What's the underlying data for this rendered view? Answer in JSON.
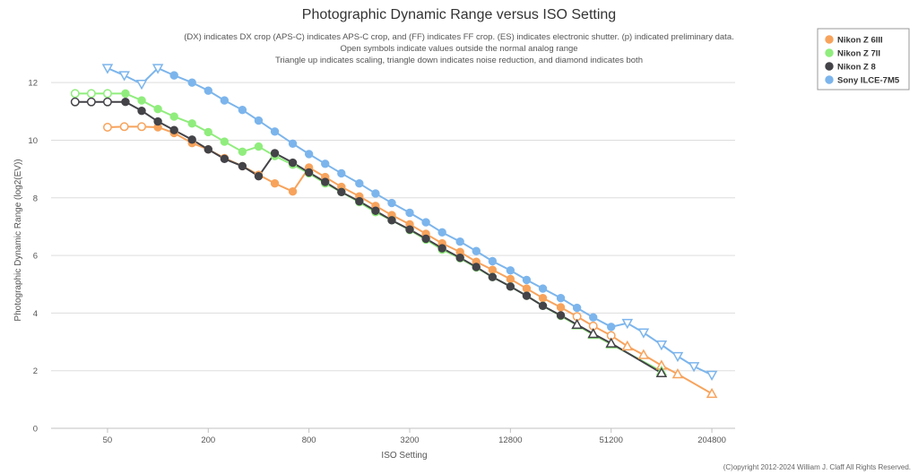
{
  "chart_data": {
    "type": "line",
    "title": "Photographic Dynamic Range versus ISO Setting",
    "subtitle": [
      "(DX) indicates DX crop (APS-C) indicates APS-C crop, and (FF) indicates FF crop. (ES) indicates electronic shutter. (p) indicated preliminary data.",
      "Open symbols indicate values outside the normal analog range",
      "Triangle up indicates scaling, triangle down indicates noise reduction, and diamond indicates both"
    ],
    "xlabel": "ISO Setting",
    "ylabel": "Photographic Dynamic Range (log2(EV))",
    "x_scale": "log2",
    "xlim": [
      23,
      282000
    ],
    "ylim": [
      0,
      13
    ],
    "x_ticks": [
      "50",
      "200",
      "800",
      "3200",
      "12800",
      "51200",
      "204800"
    ],
    "y_ticks": [
      "0",
      "2",
      "4",
      "6",
      "8",
      "10",
      "12"
    ],
    "legend": [
      "Nikon Z 6III",
      "Nikon Z 7II",
      "Nikon Z 8",
      "Sony ILCE-7M5"
    ],
    "legend_position": "top-right",
    "credit": "(C)opyright 2012-2024 William J. Claff All Rights Reserved.",
    "series": [
      {
        "name": "Nikon Z 6III",
        "color": "#F7A35C",
        "points": [
          {
            "iso": 50,
            "dr": 10.45,
            "m": "open"
          },
          {
            "iso": 63,
            "dr": 10.47,
            "m": "open"
          },
          {
            "iso": 80,
            "dr": 10.47,
            "m": "open"
          },
          {
            "iso": 100,
            "dr": 10.45,
            "m": "c"
          },
          {
            "iso": 125,
            "dr": 10.25,
            "m": "c"
          },
          {
            "iso": 160,
            "dr": 9.9,
            "m": "c"
          },
          {
            "iso": 200,
            "dr": 9.68,
            "m": "c"
          },
          {
            "iso": 250,
            "dr": 9.38,
            "m": "c"
          },
          {
            "iso": 320,
            "dr": 9.1,
            "m": "c"
          },
          {
            "iso": 400,
            "dr": 8.8,
            "m": "c"
          },
          {
            "iso": 500,
            "dr": 8.5,
            "m": "c"
          },
          {
            "iso": 640,
            "dr": 8.22,
            "m": "c"
          },
          {
            "iso": 800,
            "dr": 9.05,
            "m": "c"
          },
          {
            "iso": 1000,
            "dr": 8.72,
            "m": "c"
          },
          {
            "iso": 1250,
            "dr": 8.38,
            "m": "c"
          },
          {
            "iso": 1600,
            "dr": 8.05,
            "m": "c"
          },
          {
            "iso": 2000,
            "dr": 7.72,
            "m": "c"
          },
          {
            "iso": 2500,
            "dr": 7.4,
            "m": "c"
          },
          {
            "iso": 3200,
            "dr": 7.08,
            "m": "c"
          },
          {
            "iso": 4000,
            "dr": 6.75,
            "m": "c"
          },
          {
            "iso": 5000,
            "dr": 6.42,
            "m": "c"
          },
          {
            "iso": 6400,
            "dr": 6.12,
            "m": "c"
          },
          {
            "iso": 8000,
            "dr": 5.78,
            "m": "c"
          },
          {
            "iso": 10000,
            "dr": 5.5,
            "m": "c"
          },
          {
            "iso": 12800,
            "dr": 5.18,
            "m": "c"
          },
          {
            "iso": 16000,
            "dr": 4.85,
            "m": "c"
          },
          {
            "iso": 20000,
            "dr": 4.52,
            "m": "c"
          },
          {
            "iso": 25600,
            "dr": 4.2,
            "m": "c"
          },
          {
            "iso": 32000,
            "dr": 3.88,
            "m": "open"
          },
          {
            "iso": 40000,
            "dr": 3.55,
            "m": "open"
          },
          {
            "iso": 51200,
            "dr": 3.22,
            "m": "open"
          },
          {
            "iso": 64000,
            "dr": 2.85,
            "m": "tu"
          },
          {
            "iso": 80000,
            "dr": 2.55,
            "m": "tu"
          },
          {
            "iso": 102400,
            "dr": 2.18,
            "m": "tu"
          },
          {
            "iso": 128000,
            "dr": 1.88,
            "m": "tu"
          },
          {
            "iso": 204800,
            "dr": 1.2,
            "m": "tu"
          }
        ]
      },
      {
        "name": "Nikon Z 7II",
        "color": "#90ED7D",
        "points": [
          {
            "iso": 32,
            "dr": 11.62,
            "m": "open"
          },
          {
            "iso": 40,
            "dr": 11.62,
            "m": "open"
          },
          {
            "iso": 50,
            "dr": 11.62,
            "m": "open"
          },
          {
            "iso": 64,
            "dr": 11.62,
            "m": "c"
          },
          {
            "iso": 80,
            "dr": 11.38,
            "m": "c"
          },
          {
            "iso": 100,
            "dr": 11.08,
            "m": "c"
          },
          {
            "iso": 125,
            "dr": 10.82,
            "m": "c"
          },
          {
            "iso": 160,
            "dr": 10.58,
            "m": "c"
          },
          {
            "iso": 200,
            "dr": 10.28,
            "m": "c"
          },
          {
            "iso": 250,
            "dr": 9.95,
            "m": "c"
          },
          {
            "iso": 320,
            "dr": 9.6,
            "m": "c"
          },
          {
            "iso": 400,
            "dr": 9.78,
            "m": "c"
          },
          {
            "iso": 500,
            "dr": 9.45,
            "m": "c"
          },
          {
            "iso": 640,
            "dr": 9.15,
            "m": "c"
          },
          {
            "iso": 800,
            "dr": 8.85,
            "m": "c"
          },
          {
            "iso": 1000,
            "dr": 8.5,
            "m": "c"
          },
          {
            "iso": 1250,
            "dr": 8.2,
            "m": "c"
          },
          {
            "iso": 1600,
            "dr": 7.85,
            "m": "c"
          },
          {
            "iso": 2000,
            "dr": 7.5,
            "m": "c"
          },
          {
            "iso": 2500,
            "dr": 7.22,
            "m": "c"
          },
          {
            "iso": 3200,
            "dr": 6.88,
            "m": "c"
          },
          {
            "iso": 4000,
            "dr": 6.55,
            "m": "c"
          },
          {
            "iso": 5000,
            "dr": 6.2,
            "m": "c"
          },
          {
            "iso": 6400,
            "dr": 5.9,
            "m": "c"
          },
          {
            "iso": 8000,
            "dr": 5.58,
            "m": "c"
          },
          {
            "iso": 10000,
            "dr": 5.25,
            "m": "c"
          },
          {
            "iso": 12800,
            "dr": 4.92,
            "m": "c"
          },
          {
            "iso": 16000,
            "dr": 4.6,
            "m": "c"
          },
          {
            "iso": 20000,
            "dr": 4.25,
            "m": "c"
          },
          {
            "iso": 25600,
            "dr": 3.9,
            "m": "c"
          },
          {
            "iso": 32000,
            "dr": 3.58,
            "m": "tu"
          },
          {
            "iso": 40000,
            "dr": 3.25,
            "m": "tu"
          },
          {
            "iso": 51200,
            "dr": 2.92,
            "m": "tu"
          },
          {
            "iso": 102400,
            "dr": 1.98,
            "m": "tu"
          }
        ]
      },
      {
        "name": "Nikon Z 8",
        "color": "#434348",
        "points": [
          {
            "iso": 32,
            "dr": 11.33,
            "m": "open"
          },
          {
            "iso": 40,
            "dr": 11.33,
            "m": "open"
          },
          {
            "iso": 50,
            "dr": 11.33,
            "m": "open"
          },
          {
            "iso": 64,
            "dr": 11.33,
            "m": "c"
          },
          {
            "iso": 80,
            "dr": 11.02,
            "m": "c"
          },
          {
            "iso": 100,
            "dr": 10.65,
            "m": "c"
          },
          {
            "iso": 125,
            "dr": 10.35,
            "m": "c"
          },
          {
            "iso": 160,
            "dr": 10.02,
            "m": "c"
          },
          {
            "iso": 200,
            "dr": 9.68,
            "m": "c"
          },
          {
            "iso": 250,
            "dr": 9.35,
            "m": "c"
          },
          {
            "iso": 320,
            "dr": 9.1,
            "m": "c"
          },
          {
            "iso": 400,
            "dr": 8.75,
            "m": "c"
          },
          {
            "iso": 500,
            "dr": 9.55,
            "m": "c"
          },
          {
            "iso": 640,
            "dr": 9.22,
            "m": "c"
          },
          {
            "iso": 800,
            "dr": 8.88,
            "m": "c"
          },
          {
            "iso": 1000,
            "dr": 8.55,
            "m": "c"
          },
          {
            "iso": 1250,
            "dr": 8.2,
            "m": "c"
          },
          {
            "iso": 1600,
            "dr": 7.88,
            "m": "c"
          },
          {
            "iso": 2000,
            "dr": 7.55,
            "m": "c"
          },
          {
            "iso": 2500,
            "dr": 7.22,
            "m": "c"
          },
          {
            "iso": 3200,
            "dr": 6.9,
            "m": "c"
          },
          {
            "iso": 4000,
            "dr": 6.58,
            "m": "c"
          },
          {
            "iso": 5000,
            "dr": 6.25,
            "m": "c"
          },
          {
            "iso": 6400,
            "dr": 5.92,
            "m": "c"
          },
          {
            "iso": 8000,
            "dr": 5.6,
            "m": "c"
          },
          {
            "iso": 10000,
            "dr": 5.25,
            "m": "c"
          },
          {
            "iso": 12800,
            "dr": 4.92,
            "m": "c"
          },
          {
            "iso": 16000,
            "dr": 4.6,
            "m": "c"
          },
          {
            "iso": 20000,
            "dr": 4.25,
            "m": "c"
          },
          {
            "iso": 25600,
            "dr": 3.92,
            "m": "c"
          },
          {
            "iso": 32000,
            "dr": 3.6,
            "m": "tu"
          },
          {
            "iso": 40000,
            "dr": 3.28,
            "m": "tu"
          },
          {
            "iso": 51200,
            "dr": 2.95,
            "m": "tu"
          },
          {
            "iso": 102400,
            "dr": 1.92,
            "m": "tu"
          }
        ]
      },
      {
        "name": "Sony ILCE-7M5",
        "color": "#7CB5EC",
        "points": [
          {
            "iso": 50,
            "dr": 12.5,
            "m": "td"
          },
          {
            "iso": 63,
            "dr": 12.25,
            "m": "td"
          },
          {
            "iso": 80,
            "dr": 11.95,
            "m": "td"
          },
          {
            "iso": 100,
            "dr": 12.5,
            "m": "td"
          },
          {
            "iso": 125,
            "dr": 12.25,
            "m": "c"
          },
          {
            "iso": 160,
            "dr": 12.0,
            "m": "c"
          },
          {
            "iso": 200,
            "dr": 11.72,
            "m": "c"
          },
          {
            "iso": 250,
            "dr": 11.38,
            "m": "c"
          },
          {
            "iso": 320,
            "dr": 11.05,
            "m": "c"
          },
          {
            "iso": 400,
            "dr": 10.68,
            "m": "c"
          },
          {
            "iso": 500,
            "dr": 10.3,
            "m": "c"
          },
          {
            "iso": 640,
            "dr": 9.88,
            "m": "c"
          },
          {
            "iso": 800,
            "dr": 9.52,
            "m": "c"
          },
          {
            "iso": 1000,
            "dr": 9.18,
            "m": "c"
          },
          {
            "iso": 1250,
            "dr": 8.85,
            "m": "c"
          },
          {
            "iso": 1600,
            "dr": 8.5,
            "m": "c"
          },
          {
            "iso": 2000,
            "dr": 8.15,
            "m": "c"
          },
          {
            "iso": 2500,
            "dr": 7.82,
            "m": "c"
          },
          {
            "iso": 3200,
            "dr": 7.48,
            "m": "c"
          },
          {
            "iso": 4000,
            "dr": 7.15,
            "m": "c"
          },
          {
            "iso": 5000,
            "dr": 6.8,
            "m": "c"
          },
          {
            "iso": 6400,
            "dr": 6.48,
            "m": "c"
          },
          {
            "iso": 8000,
            "dr": 6.15,
            "m": "c"
          },
          {
            "iso": 10000,
            "dr": 5.8,
            "m": "c"
          },
          {
            "iso": 12800,
            "dr": 5.48,
            "m": "c"
          },
          {
            "iso": 16000,
            "dr": 5.15,
            "m": "c"
          },
          {
            "iso": 20000,
            "dr": 4.85,
            "m": "c"
          },
          {
            "iso": 25600,
            "dr": 4.52,
            "m": "c"
          },
          {
            "iso": 32000,
            "dr": 4.18,
            "m": "c"
          },
          {
            "iso": 40000,
            "dr": 3.85,
            "m": "c"
          },
          {
            "iso": 51200,
            "dr": 3.52,
            "m": "c"
          },
          {
            "iso": 64000,
            "dr": 3.65,
            "m": "td"
          },
          {
            "iso": 80000,
            "dr": 3.32,
            "m": "td"
          },
          {
            "iso": 102400,
            "dr": 2.9,
            "m": "td"
          },
          {
            "iso": 128000,
            "dr": 2.5,
            "m": "td"
          },
          {
            "iso": 160000,
            "dr": 2.15,
            "m": "td"
          },
          {
            "iso": 204800,
            "dr": 1.85,
            "m": "td"
          }
        ]
      }
    ]
  }
}
